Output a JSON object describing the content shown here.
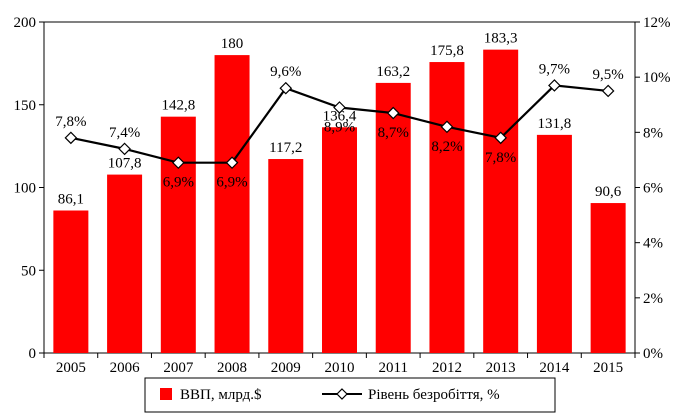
{
  "chart_data": {
    "type": "bar",
    "title": "",
    "categories": [
      "2005",
      "2006",
      "2007",
      "2008",
      "2009",
      "2010",
      "2011",
      "2012",
      "2013",
      "2014",
      "2015"
    ],
    "series": [
      {
        "name": "ВВП, млрд.$",
        "type": "bar",
        "axis": "left",
        "color": "#ff0000",
        "values": [
          86.1,
          107.8,
          142.8,
          180,
          117.2,
          136.4,
          163.2,
          175.8,
          183.3,
          131.8,
          90.6
        ],
        "labels": [
          "86,1",
          "107,8",
          "142,8",
          "180",
          "117,2",
          "136,4",
          "163,2",
          "175,8",
          "183,3",
          "131,8",
          "90,6"
        ]
      },
      {
        "name": "Рівень безробіття, %",
        "type": "line",
        "axis": "right",
        "color": "#000000",
        "marker": "diamond",
        "values": [
          7.8,
          7.4,
          6.9,
          6.9,
          9.6,
          8.9,
          8.7,
          8.2,
          7.8,
          9.7,
          9.5
        ],
        "labels": [
          "7,8%",
          "7,4%",
          "6,9%",
          "6,9%",
          "9,6%",
          "8,9%",
          "8,7%",
          "8,2%",
          "7,8%",
          "9,7%",
          "9,5%"
        ]
      }
    ],
    "y_left": {
      "min": 0,
      "max": 200,
      "ticks": [
        "0",
        "50",
        "100",
        "150",
        "200"
      ]
    },
    "y_right": {
      "min": 0,
      "max": 12,
      "ticks": [
        "0%",
        "2%",
        "4%",
        "6%",
        "8%",
        "10%",
        "12%"
      ]
    },
    "xlabel": "",
    "ylabel": "",
    "grid": false,
    "legend": "bottom"
  }
}
